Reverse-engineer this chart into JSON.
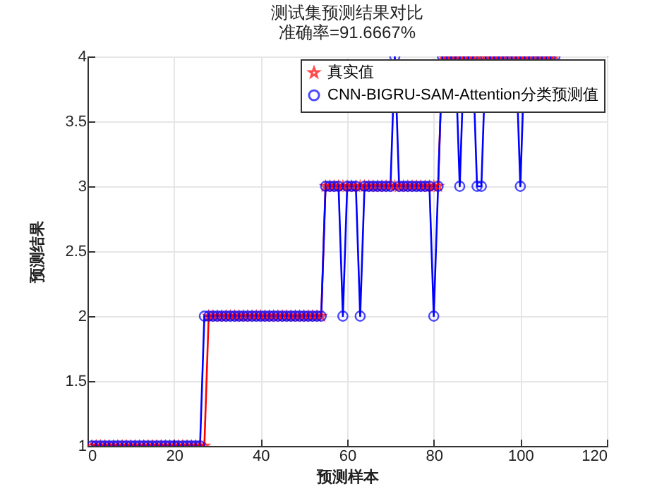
{
  "chart_data": {
    "type": "line",
    "title": "测试集预测结果对比",
    "subtitle": "准确率=91.6667%",
    "xlabel": "预测样本",
    "ylabel": "预测结果",
    "x": [
      1,
      2,
      3,
      4,
      5,
      6,
      7,
      8,
      9,
      10,
      11,
      12,
      13,
      14,
      15,
      16,
      17,
      18,
      19,
      20,
      21,
      22,
      23,
      24,
      25,
      26,
      27,
      28,
      29,
      30,
      31,
      32,
      33,
      34,
      35,
      36,
      37,
      38,
      39,
      40,
      41,
      42,
      43,
      44,
      45,
      46,
      47,
      48,
      49,
      50,
      51,
      52,
      53,
      54,
      55,
      56,
      57,
      58,
      59,
      60,
      61,
      62,
      63,
      64,
      65,
      66,
      67,
      68,
      69,
      70,
      71,
      72,
      73,
      74,
      75,
      76,
      77,
      78,
      79,
      80,
      81,
      82,
      83,
      84,
      85,
      86,
      87,
      88,
      89,
      90,
      91,
      92,
      93,
      94,
      95,
      96,
      97,
      98,
      99,
      100,
      101,
      102,
      103,
      104,
      105,
      106,
      107,
      108
    ],
    "series": [
      {
        "name": "真实值",
        "color": "#ff0000",
        "marker": "star",
        "values": [
          1,
          1,
          1,
          1,
          1,
          1,
          1,
          1,
          1,
          1,
          1,
          1,
          1,
          1,
          1,
          1,
          1,
          1,
          1,
          1,
          1,
          1,
          1,
          1,
          1,
          1,
          1,
          2,
          2,
          2,
          2,
          2,
          2,
          2,
          2,
          2,
          2,
          2,
          2,
          2,
          2,
          2,
          2,
          2,
          2,
          2,
          2,
          2,
          2,
          2,
          2,
          2,
          2,
          2,
          3,
          3,
          3,
          3,
          3,
          3,
          3,
          3,
          3,
          3,
          3,
          3,
          3,
          3,
          3,
          3,
          3,
          3,
          3,
          3,
          3,
          3,
          3,
          3,
          3,
          3,
          3,
          4,
          4,
          4,
          4,
          4,
          4,
          4,
          4,
          4,
          4,
          4,
          4,
          4,
          4,
          4,
          4,
          4,
          4,
          4,
          4,
          4,
          4,
          4,
          4,
          4,
          4,
          4
        ]
      },
      {
        "name": "CNN-BIGRU-SAM-Attention分类预测值",
        "color": "#0000ff",
        "marker": "circle",
        "values": [
          1,
          1,
          1,
          1,
          1,
          1,
          1,
          1,
          1,
          1,
          1,
          1,
          1,
          1,
          1,
          1,
          1,
          1,
          1,
          1,
          1,
          1,
          1,
          1,
          1,
          1,
          2,
          2,
          2,
          2,
          2,
          2,
          2,
          2,
          2,
          2,
          2,
          2,
          2,
          2,
          2,
          2,
          2,
          2,
          2,
          2,
          2,
          2,
          2,
          2,
          2,
          2,
          2,
          2,
          3,
          3,
          3,
          3,
          2,
          3,
          3,
          3,
          2,
          3,
          3,
          3,
          3,
          3,
          3,
          3,
          4,
          3,
          3,
          3,
          3,
          3,
          3,
          3,
          3,
          2,
          3,
          4,
          4,
          4,
          4,
          3,
          4,
          4,
          4,
          3,
          3,
          4,
          4,
          4,
          4,
          4,
          4,
          4,
          4,
          3,
          4,
          4,
          4,
          4,
          4,
          4,
          4,
          4
        ]
      }
    ],
    "xlim": [
      0,
      120
    ],
    "xticks": [
      0,
      20,
      40,
      60,
      80,
      100,
      120
    ],
    "ylim": [
      1,
      4
    ],
    "yticks": [
      1,
      1.5,
      2,
      2.5,
      3,
      3.5,
      4
    ],
    "grid": true,
    "legend": "top right"
  }
}
